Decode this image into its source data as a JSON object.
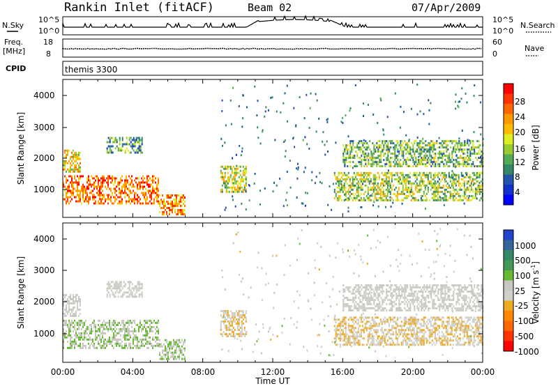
{
  "header": {
    "station": "Rankin Inlet (fitACF)",
    "beam": "Beam 02",
    "date": "07/Apr/2009"
  },
  "noise_panel": {
    "left_label": "N.Sky",
    "right_label": "N.Search",
    "ticks": [
      "10^5",
      "10^0"
    ]
  },
  "freq_panel": {
    "left_label_1": "Freq.",
    "left_label_2": "[MHz]",
    "left_ticks": [
      "18",
      "8"
    ],
    "right_label": "Nave",
    "right_ticks": [
      "60",
      "0"
    ]
  },
  "cpid_panel": {
    "label": "CPID",
    "mode": "themis 3300"
  },
  "power_panel": {
    "ylabel": "Slant Range [km]",
    "yticks": [
      "4000",
      "3000",
      "2000",
      "1000"
    ],
    "colorbar_title": "Power [dB]",
    "colorbar_labels": [
      "28",
      "24",
      "20",
      "16",
      "12",
      "8",
      "4"
    ],
    "colorbar_colors": [
      "#ff0000",
      "#ff3300",
      "#ff6600",
      "#ff9900",
      "#ffbb00",
      "#ddee22",
      "#99cc33",
      "#55aa55",
      "#338866",
      "#2255aa",
      "#1133cc",
      "#0000ff"
    ]
  },
  "velocity_panel": {
    "ylabel": "Slant Range [km]",
    "yticks": [
      "4000",
      "3000",
      "2000",
      "1000"
    ],
    "colorbar_title": "Velocity [m s",
    "colorbar_title_sup": "-1",
    "colorbar_title_end": "]",
    "colorbar_labels": [
      "1000",
      "500",
      "100",
      "25",
      "-25",
      "-100",
      "-500",
      "-1000"
    ],
    "colorbar_colors": [
      "#2244cc",
      "#336699",
      "#338866",
      "#449955",
      "#66bb33",
      "#c8c8c0",
      "#d0d0c8",
      "#eeaa22",
      "#ff8800",
      "#ff6600",
      "#ff3300",
      "#ff0000"
    ]
  },
  "x_axis": {
    "ticks": [
      "00:00",
      "04:00",
      "08:00",
      "12:00",
      "16:00",
      "20:00",
      "00:00"
    ],
    "label": "Time UT"
  },
  "chart_data": {
    "type": "heatmap",
    "title": "Rankin Inlet (fitACF)",
    "xlabel": "Time UT",
    "ylabel": "Slant Range [km]",
    "x_range": [
      0,
      24
    ],
    "y_range": [
      180,
      4500
    ],
    "power_cmap_range_dB": [
      0,
      30
    ],
    "velocity_cmap_range_ms": [
      -1000,
      1000
    ],
    "scatter_regions": [
      {
        "t_start": 0.0,
        "t_end": 5.5,
        "r_start": 600,
        "r_end": 1500,
        "power_dB": 24,
        "velocity": 150
      },
      {
        "t_start": 0.0,
        "t_end": 1.0,
        "r_start": 1600,
        "r_end": 2300,
        "power_dB": 18,
        "velocity": 0
      },
      {
        "t_start": 2.5,
        "t_end": 4.5,
        "r_start": 2200,
        "r_end": 2700,
        "power_dB": 10,
        "velocity": 0
      },
      {
        "t_start": 5.5,
        "t_end": 7.0,
        "r_start": 300,
        "r_end": 900,
        "power_dB": 22,
        "velocity": 150
      },
      {
        "t_start": 9.0,
        "t_end": 10.5,
        "r_start": 1000,
        "r_end": 1800,
        "power_dB": 16,
        "velocity": -150
      },
      {
        "t_start": 15.5,
        "t_end": 24.0,
        "r_start": 700,
        "r_end": 1600,
        "power_dB": 14,
        "velocity": -150
      },
      {
        "t_start": 16.0,
        "t_end": 24.0,
        "r_start": 1800,
        "r_end": 2600,
        "power_dB": 12,
        "velocity": 0
      }
    ]
  }
}
